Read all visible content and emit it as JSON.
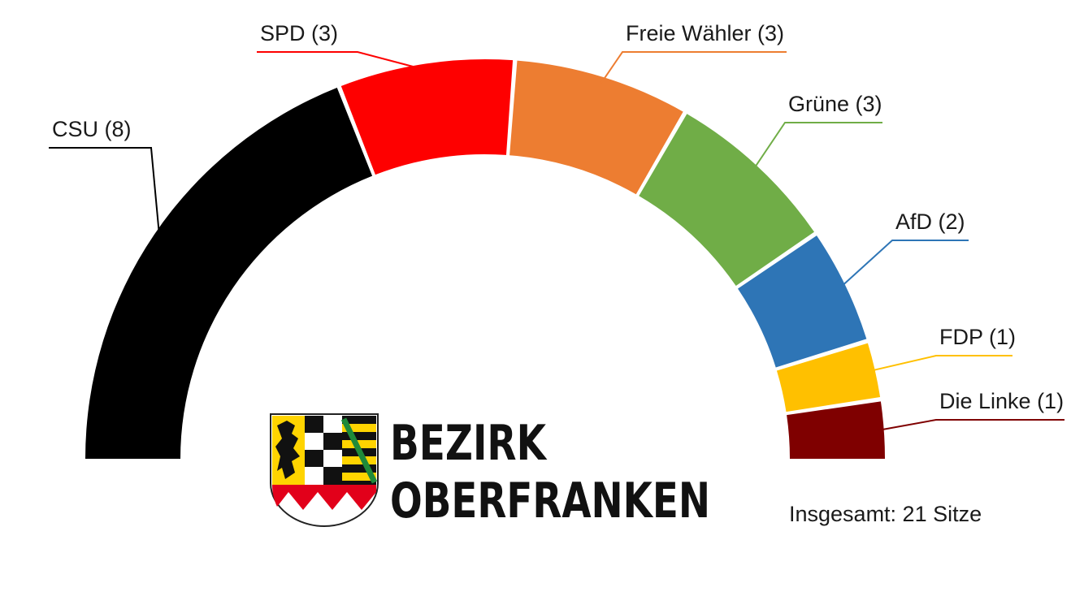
{
  "chart_data": {
    "type": "parliament-semicircle",
    "total_label": "Insgesamt: 21 Sitze",
    "total_seats": 21,
    "series": [
      {
        "name": "CSU",
        "seats": 8,
        "label": "CSU (8)",
        "color": "#000000"
      },
      {
        "name": "SPD",
        "seats": 3,
        "label": "SPD (3)",
        "color": "#fe0000"
      },
      {
        "name": "Freie Wähler",
        "seats": 3,
        "label": "Freie Wähler (3)",
        "color": "#ed7d31"
      },
      {
        "name": "Grüne",
        "seats": 3,
        "label": "Grüne (3)",
        "color": "#70ad47"
      },
      {
        "name": "AfD",
        "seats": 2,
        "label": "AfD (2)",
        "color": "#2e75b6"
      },
      {
        "name": "FDP",
        "seats": 1,
        "label": "FDP (1)",
        "color": "#ffc000"
      },
      {
        "name": "Die Linke",
        "seats": 1,
        "label": "Die Linke (1)",
        "color": "#7f0000"
      }
    ]
  },
  "logo": {
    "line1": "BEZIRK",
    "line2": "OBERFRANKEN",
    "emblem_icon": "oberfranken-coat-of-arms-icon"
  }
}
